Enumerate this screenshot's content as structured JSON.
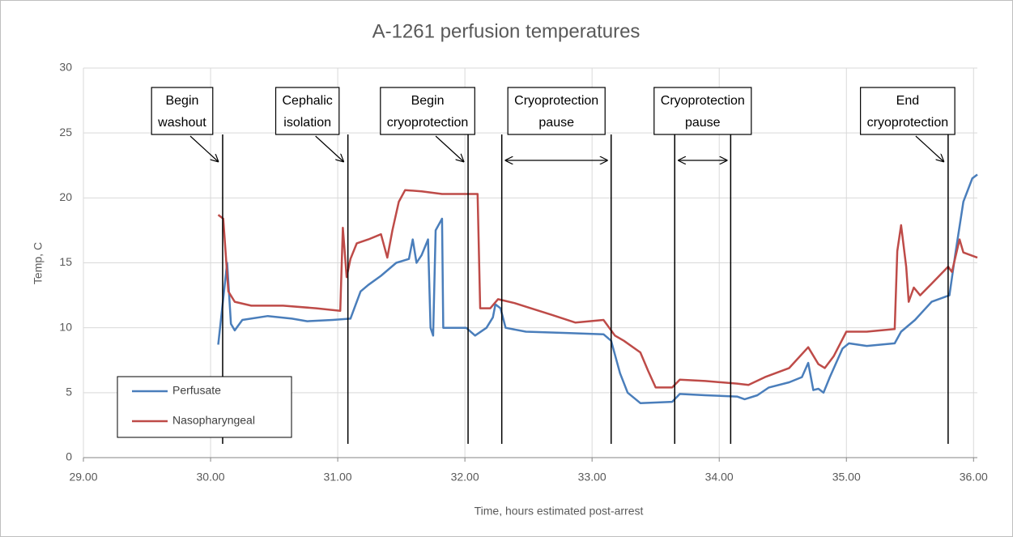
{
  "chart_data": {
    "type": "line",
    "title": "A-1261 perfusion temperatures",
    "xlabel": "Time, hours estimated post-arrest",
    "ylabel": "Temp, C",
    "xlim": [
      29,
      36.03
    ],
    "ylim": [
      0,
      30
    ],
    "xticks": [
      {
        "value": 29,
        "label": "29.00"
      },
      {
        "value": 30,
        "label": "30.00"
      },
      {
        "value": 31,
        "label": "31.00"
      },
      {
        "value": 32,
        "label": "32.00"
      },
      {
        "value": 33,
        "label": "33.00"
      },
      {
        "value": 34,
        "label": "34.00"
      },
      {
        "value": 35,
        "label": "35.00"
      },
      {
        "value": 36,
        "label": "36.00"
      }
    ],
    "yticks": [
      0,
      5,
      10,
      15,
      20,
      25,
      30
    ],
    "grid": true,
    "legend": "lower left",
    "series": [
      {
        "name": "Perfusate",
        "color": "#4a7ebb",
        "x": [
          30.06,
          30.13,
          30.16,
          30.19,
          30.25,
          30.45,
          30.64,
          30.76,
          30.96,
          31.1,
          31.18,
          31.24,
          31.34,
          31.46,
          31.56,
          31.59,
          31.62,
          31.66,
          31.71,
          31.73,
          31.75,
          31.77,
          31.82,
          31.83,
          31.91,
          32.01,
          32.08,
          32.17,
          32.22,
          32.24,
          32.28,
          32.32,
          32.48,
          32.8,
          33.09,
          33.15,
          33.22,
          33.28,
          33.38,
          33.63,
          33.69,
          33.89,
          34.14,
          34.2,
          34.3,
          34.39,
          34.55,
          34.65,
          34.7,
          34.74,
          34.78,
          34.82,
          34.87,
          34.97,
          35.02,
          35.16,
          35.38,
          35.43,
          35.54,
          35.67,
          35.81,
          35.86,
          35.92,
          35.99,
          36.03
        ],
        "values": [
          8.7,
          15.0,
          10.3,
          9.8,
          10.6,
          10.9,
          10.7,
          10.5,
          10.6,
          10.7,
          12.8,
          13.3,
          14.0,
          15.0,
          15.3,
          16.8,
          15.0,
          15.6,
          16.8,
          10.0,
          9.4,
          17.5,
          18.4,
          10.0,
          10.0,
          10.0,
          9.4,
          10.0,
          10.8,
          11.8,
          11.5,
          10.0,
          9.7,
          9.6,
          9.5,
          9.0,
          6.5,
          5.0,
          4.2,
          4.3,
          4.9,
          4.8,
          4.7,
          4.5,
          4.8,
          5.4,
          5.8,
          6.2,
          7.3,
          5.2,
          5.3,
          5.0,
          6.2,
          8.4,
          8.8,
          8.6,
          8.8,
          9.7,
          10.6,
          12.0,
          12.5,
          15.9,
          19.7,
          21.5,
          21.8
        ]
      },
      {
        "name": "Nasopharyngeal",
        "color": "#be4b48",
        "x": [
          30.06,
          30.1,
          30.14,
          30.19,
          30.32,
          30.57,
          30.83,
          31.02,
          31.04,
          31.07,
          31.1,
          31.15,
          31.24,
          31.34,
          31.39,
          31.43,
          31.48,
          31.53,
          31.66,
          31.82,
          32.07,
          32.1,
          32.12,
          32.2,
          32.26,
          32.39,
          32.68,
          32.87,
          33.09,
          33.18,
          33.25,
          33.38,
          33.44,
          33.5,
          33.63,
          33.69,
          33.89,
          34.14,
          34.23,
          34.36,
          34.55,
          34.7,
          34.78,
          34.83,
          34.9,
          35.0,
          35.16,
          35.38,
          35.4,
          35.43,
          35.47,
          35.49,
          35.53,
          35.58,
          35.67,
          35.8,
          35.83,
          35.89,
          35.92,
          36.03
        ],
        "values": [
          18.7,
          18.4,
          12.8,
          12.0,
          11.7,
          11.7,
          11.5,
          11.3,
          17.7,
          13.9,
          15.3,
          16.5,
          16.8,
          17.2,
          15.4,
          17.5,
          19.7,
          20.6,
          20.5,
          20.3,
          20.3,
          20.3,
          11.5,
          11.5,
          12.2,
          11.9,
          11.0,
          10.4,
          10.6,
          9.4,
          9.0,
          8.1,
          6.7,
          5.4,
          5.4,
          6.0,
          5.9,
          5.7,
          5.6,
          6.2,
          6.9,
          8.5,
          7.2,
          6.9,
          7.8,
          9.7,
          9.7,
          9.9,
          15.9,
          17.9,
          14.7,
          12.0,
          13.1,
          12.5,
          13.4,
          14.7,
          14.3,
          16.8,
          15.8,
          15.4
        ]
      }
    ],
    "annotations": [
      {
        "lines": [
          "Begin",
          "washout"
        ],
        "x": 30.095
      },
      {
        "lines": [
          "Cephalic",
          "isolation"
        ],
        "x": 31.08
      },
      {
        "lines": [
          "Begin",
          "cryoprotection"
        ],
        "x": 32.025
      },
      {
        "lines": [
          "Cryoprotection",
          "pause"
        ],
        "x": [
          32.29,
          33.15
        ]
      },
      {
        "lines": [
          "Cryoprotection",
          "pause"
        ],
        "x": [
          33.65,
          34.09
        ]
      },
      {
        "lines": [
          "End",
          "cryoprotection"
        ],
        "x": 35.8
      }
    ]
  }
}
